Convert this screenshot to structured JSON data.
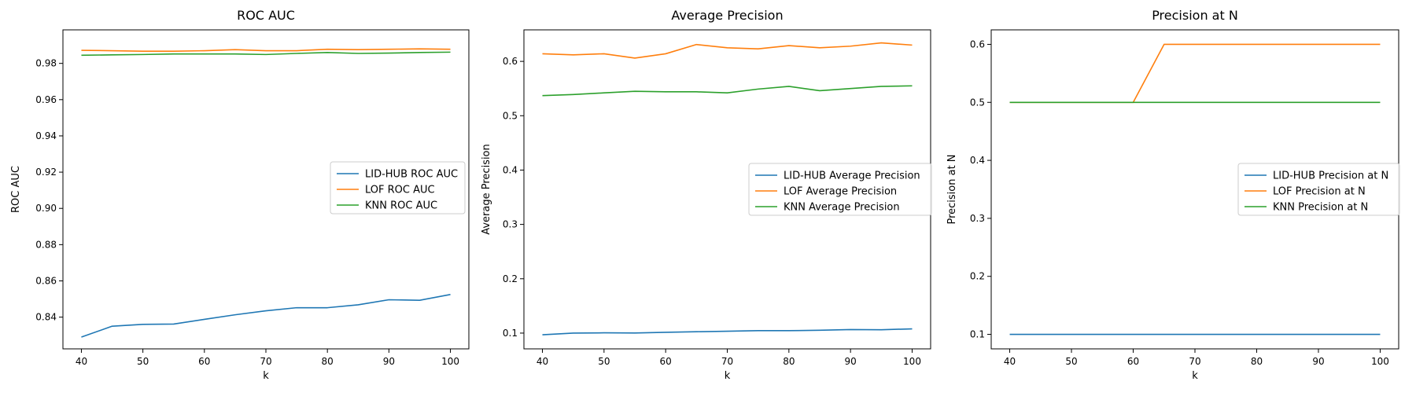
{
  "colors": {
    "lid_hub": "#1f77b4",
    "lof": "#ff7f0e",
    "knn": "#2ca02c"
  },
  "chart_data": [
    {
      "type": "line",
      "title": "ROC AUC",
      "xlabel": "k",
      "ylabel": "ROC AUC",
      "xlim": [
        37,
        103
      ],
      "ylim": [
        0.8225,
        0.9985
      ],
      "xticks": [
        40,
        50,
        60,
        70,
        80,
        90,
        100
      ],
      "xtick_labels": [
        "40",
        "50",
        "60",
        "70",
        "80",
        "90",
        "100"
      ],
      "yticks": [
        0.84,
        0.86,
        0.88,
        0.9,
        0.92,
        0.94,
        0.96,
        0.98
      ],
      "ytick_labels": [
        "0.84",
        "0.86",
        "0.88",
        "0.90",
        "0.92",
        "0.94",
        "0.96",
        "0.98"
      ],
      "legend": "center-right",
      "grid": false,
      "x": [
        40,
        45,
        50,
        55,
        60,
        65,
        70,
        75,
        80,
        85,
        90,
        95,
        100
      ],
      "series": [
        {
          "name": "LID-HUB ROC AUC",
          "color": "#1f77b4",
          "values": [
            0.829,
            0.835,
            0.836,
            0.8362,
            0.8388,
            0.8413,
            0.8435,
            0.8452,
            0.8452,
            0.8468,
            0.8496,
            0.8493,
            0.8525
          ]
        },
        {
          "name": "LOF ROC AUC",
          "color": "#ff7f0e",
          "values": [
            0.9872,
            0.987,
            0.9867,
            0.9867,
            0.987,
            0.9876,
            0.987,
            0.987,
            0.9878,
            0.9876,
            0.9878,
            0.988,
            0.9878
          ]
        },
        {
          "name": "KNN ROC AUC",
          "color": "#2ca02c",
          "values": [
            0.9845,
            0.9847,
            0.9849,
            0.9852,
            0.9852,
            0.9852,
            0.9849,
            0.9855,
            0.986,
            0.9855,
            0.9857,
            0.986,
            0.9862
          ]
        }
      ]
    },
    {
      "type": "line",
      "title": "Average Precision",
      "xlabel": "k",
      "ylabel": "Average Precision",
      "xlim": [
        37,
        103
      ],
      "ylim": [
        0.071,
        0.658
      ],
      "xticks": [
        40,
        50,
        60,
        70,
        80,
        90,
        100
      ],
      "xtick_labels": [
        "40",
        "50",
        "60",
        "70",
        "80",
        "90",
        "100"
      ],
      "yticks": [
        0.1,
        0.2,
        0.3,
        0.4,
        0.5,
        0.6
      ],
      "ytick_labels": [
        "0.1",
        "0.2",
        "0.3",
        "0.4",
        "0.5",
        "0.6"
      ],
      "legend": "center-right",
      "grid": false,
      "x": [
        40,
        45,
        50,
        55,
        60,
        65,
        70,
        75,
        80,
        85,
        90,
        95,
        100
      ],
      "series": [
        {
          "name": "LID-HUB Average Precision",
          "color": "#1f77b4",
          "values": [
            0.097,
            0.1,
            0.1005,
            0.1002,
            0.1015,
            0.1025,
            0.1035,
            0.1045,
            0.1045,
            0.1052,
            0.1065,
            0.1062,
            0.1078
          ]
        },
        {
          "name": "LOF Average Precision",
          "color": "#ff7f0e",
          "values": [
            0.614,
            0.612,
            0.614,
            0.606,
            0.614,
            0.631,
            0.625,
            0.623,
            0.629,
            0.625,
            0.628,
            0.634,
            0.63
          ]
        },
        {
          "name": "KNN Average Precision",
          "color": "#2ca02c",
          "values": [
            0.537,
            0.539,
            0.542,
            0.545,
            0.544,
            0.544,
            0.542,
            0.549,
            0.554,
            0.546,
            0.55,
            0.554,
            0.555
          ]
        }
      ]
    },
    {
      "type": "line",
      "title": "Precision at N",
      "xlabel": "k",
      "ylabel": "Precision at N",
      "xlim": [
        37,
        103
      ],
      "ylim": [
        0.075,
        0.625
      ],
      "xticks": [
        40,
        50,
        60,
        70,
        80,
        90,
        100
      ],
      "xtick_labels": [
        "40",
        "50",
        "60",
        "70",
        "80",
        "90",
        "100"
      ],
      "yticks": [
        0.1,
        0.2,
        0.3,
        0.4,
        0.5,
        0.6
      ],
      "ytick_labels": [
        "0.1",
        "0.2",
        "0.3",
        "0.4",
        "0.5",
        "0.6"
      ],
      "legend": "center-right",
      "grid": false,
      "x": [
        40,
        45,
        50,
        55,
        60,
        65,
        70,
        75,
        80,
        85,
        90,
        95,
        100
      ],
      "series": [
        {
          "name": "LID-HUB Precision at N",
          "color": "#1f77b4",
          "values": [
            0.1,
            0.1,
            0.1,
            0.1,
            0.1,
            0.1,
            0.1,
            0.1,
            0.1,
            0.1,
            0.1,
            0.1,
            0.1
          ]
        },
        {
          "name": "LOF Precision at N",
          "color": "#ff7f0e",
          "values": [
            0.5,
            0.5,
            0.5,
            0.5,
            0.5,
            0.6,
            0.6,
            0.6,
            0.6,
            0.6,
            0.6,
            0.6,
            0.6
          ]
        },
        {
          "name": "KNN Precision at N",
          "color": "#2ca02c",
          "values": [
            0.5,
            0.5,
            0.5,
            0.5,
            0.5,
            0.5,
            0.5,
            0.5,
            0.5,
            0.5,
            0.5,
            0.5,
            0.5
          ]
        }
      ]
    }
  ]
}
